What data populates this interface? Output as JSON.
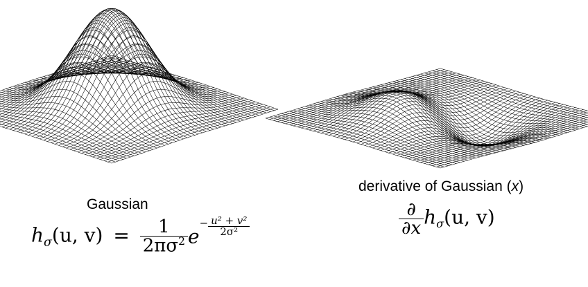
{
  "left_panel": {
    "title": "Gaussian",
    "formula": {
      "lhs_h": "h",
      "lhs_sub": "σ",
      "lhs_args": "(u, v)",
      "equals": "=",
      "numerator": "1",
      "denominator": "2πσ",
      "denominator_exp": "2",
      "e": "e",
      "exp_sign": "−",
      "exp_numerator": "u² + v²",
      "exp_denominator": "2σ²"
    }
  },
  "right_panel": {
    "title_prefix": "derivative of Gaussian (",
    "title_var": "x",
    "title_suffix": ")",
    "formula": {
      "numerator": "∂",
      "denominator": "∂x",
      "h": "h",
      "sub": "σ",
      "args": "(u, v)"
    }
  }
}
